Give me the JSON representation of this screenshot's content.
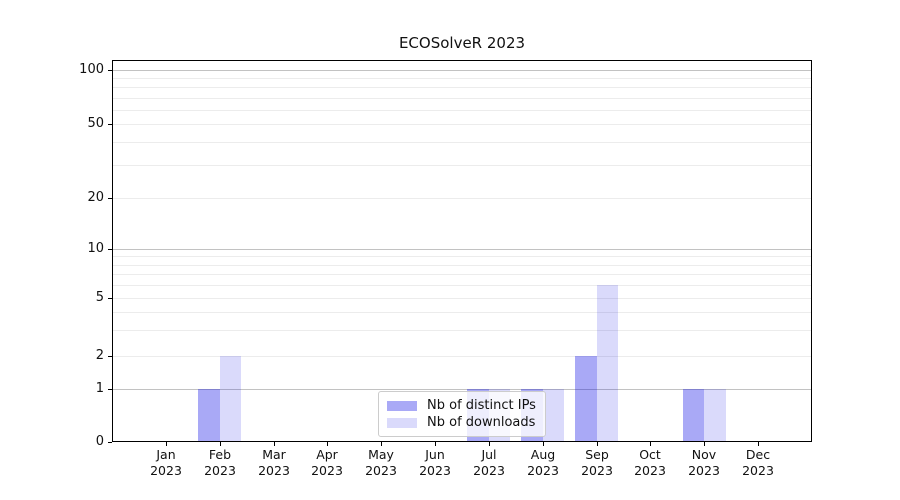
{
  "chart_data": {
    "type": "bar",
    "title": "ECOSolveR 2023",
    "xlabel": "",
    "ylabel": "",
    "categories": [
      "Jan 2023",
      "Feb 2023",
      "Mar 2023",
      "Apr 2023",
      "May 2023",
      "Jun 2023",
      "Jul 2023",
      "Aug 2023",
      "Sep 2023",
      "Oct 2023",
      "Nov 2023",
      "Dec 2023"
    ],
    "series": [
      {
        "name": "Nb of distinct IPs",
        "color": "rgba(10,10,230,0.35)",
        "values": [
          0,
          1,
          0,
          0,
          0,
          0,
          1,
          1,
          2,
          0,
          1,
          0
        ]
      },
      {
        "name": "Nb of downloads",
        "color": "rgba(10,10,230,0.15)",
        "values": [
          0,
          2,
          0,
          0,
          0,
          0,
          1,
          1,
          6,
          0,
          1,
          0
        ]
      }
    ],
    "yscale": "symlog",
    "ylim": [
      0,
      110
    ],
    "yticks": [
      0,
      1,
      2,
      5,
      10,
      20,
      50,
      100
    ],
    "yticks_minor": [
      3,
      4,
      6,
      7,
      8,
      9,
      30,
      40,
      60,
      70,
      80,
      90
    ],
    "ydecade_ticks": [
      1,
      10,
      100
    ],
    "grid": true,
    "legend_position": "lower center",
    "colors": {
      "grid_minor": "#ececec",
      "grid_decade": "#c2c2c2",
      "spine": "#000000",
      "legend_border": "#cccccc"
    }
  }
}
